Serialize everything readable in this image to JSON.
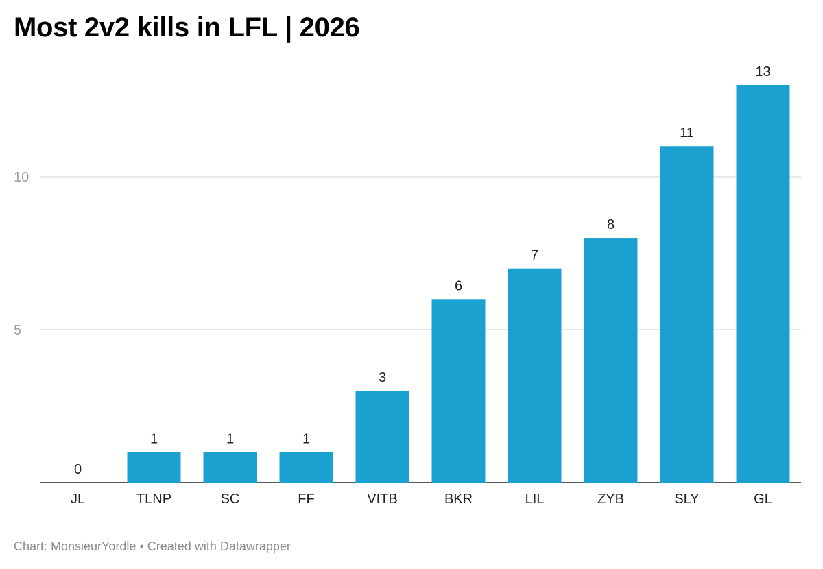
{
  "chart_data": {
    "type": "bar",
    "title": "Most 2v2 kills in LFL | 2026",
    "categories": [
      "JL",
      "TLNP",
      "SC",
      "FF",
      "VITB",
      "BKR",
      "LIL",
      "ZYB",
      "SLY",
      "GL"
    ],
    "values": [
      0,
      1,
      1,
      1,
      3,
      6,
      7,
      8,
      11,
      13
    ],
    "xlabel": "",
    "ylabel": "",
    "ylim": [
      0,
      13
    ],
    "yticks": [
      5,
      10
    ],
    "grid": true,
    "legend": "none",
    "bar_color": "#1ba1cf",
    "data_labels": true
  },
  "footer": {
    "source": "Chart: MonsieurYordle",
    "separator": "•",
    "credit": "Created with Datawrapper"
  }
}
